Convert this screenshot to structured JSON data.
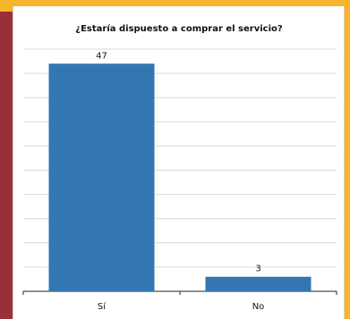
{
  "page": {
    "background_color": "#f7b52b",
    "strip_color": "#9a2f3c",
    "panel_color": "#ffffff"
  },
  "chart_data": {
    "type": "bar",
    "title": "¿Estaría dispuesto a comprar el servicio?",
    "categories": [
      "Sí",
      "No"
    ],
    "values": [
      47,
      3
    ],
    "ylim": [
      0,
      50
    ],
    "grid": true,
    "bar_color": "#3277b1"
  }
}
